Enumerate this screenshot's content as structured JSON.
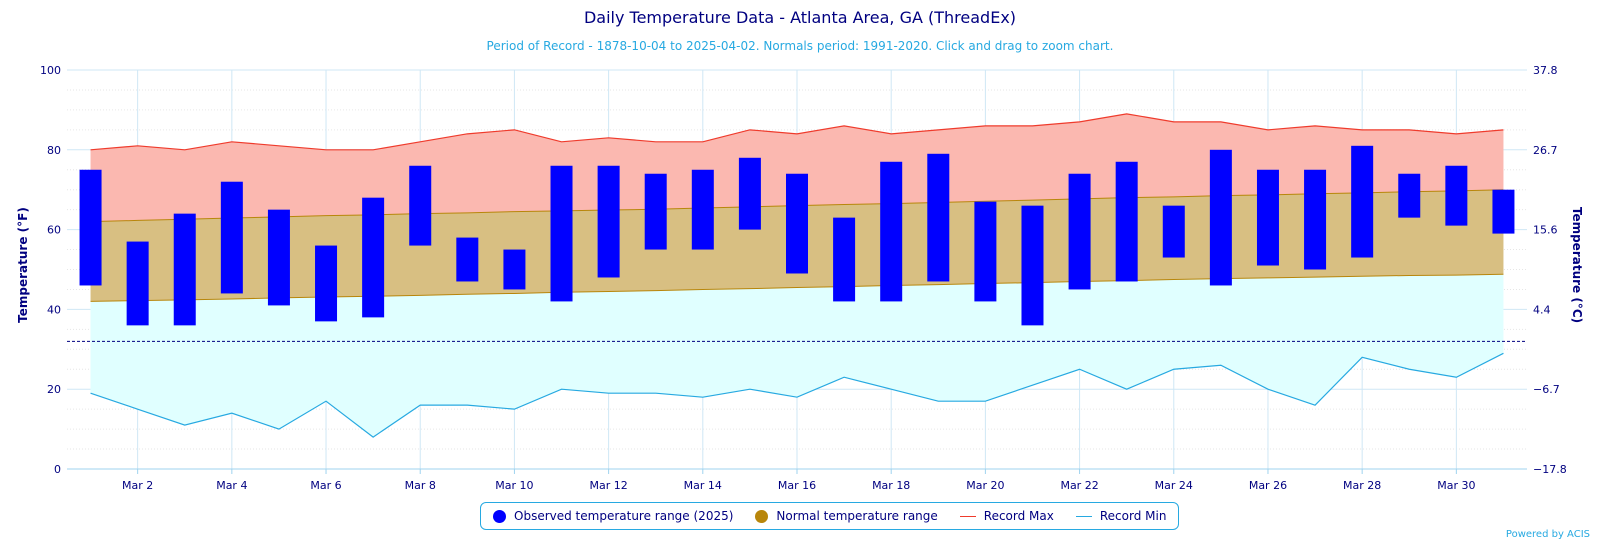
{
  "chart_data": {
    "type": "bar",
    "title": "Daily Temperature Data - Atlanta Area, GA (ThreadEx)",
    "subtitle": "Period of Record - 1878-10-04 to 2025-04-02. Normals period: 1991-2020. Click and drag to zoom chart.",
    "ylabel": "Temperature (°F)",
    "ylabel_right": "Temperature (°C)",
    "ylim": [
      0,
      100
    ],
    "yticks": [
      "0",
      "20",
      "40",
      "60",
      "80",
      "100"
    ],
    "yticks_right": [
      "−17.8",
      "−6.7",
      "4.4",
      "15.6",
      "26.7",
      "37.8"
    ],
    "freezing_line": 32,
    "grid": true,
    "legend_position": "bottom",
    "days": [
      1,
      2,
      3,
      4,
      5,
      6,
      7,
      8,
      9,
      10,
      11,
      12,
      13,
      14,
      15,
      16,
      17,
      18,
      19,
      20,
      21,
      22,
      23,
      24,
      25,
      26,
      27,
      28,
      29,
      30,
      31
    ],
    "x_tick_labels": [
      "Mar 2",
      "Mar 4",
      "Mar 6",
      "Mar 8",
      "Mar 10",
      "Mar 12",
      "Mar 14",
      "Mar 16",
      "Mar 18",
      "Mar 20",
      "Mar 22",
      "Mar 24",
      "Mar 26",
      "Mar 28",
      "Mar 30"
    ],
    "x_tick_days": [
      2,
      4,
      6,
      8,
      10,
      12,
      14,
      16,
      18,
      20,
      22,
      24,
      26,
      28,
      30
    ],
    "series": [
      {
        "name": "Observed temperature range (2025)",
        "color": "#0000ff",
        "low": [
          46,
          36,
          36,
          44,
          41,
          37,
          38,
          56,
          47,
          45,
          42,
          48,
          55,
          55,
          60,
          49,
          42,
          42,
          47,
          42,
          36,
          45,
          47,
          53,
          46,
          51,
          50,
          53,
          63,
          61,
          59
        ],
        "high": [
          75,
          57,
          64,
          72,
          65,
          56,
          68,
          76,
          58,
          55,
          76,
          76,
          74,
          75,
          78,
          74,
          63,
          77,
          79,
          67,
          66,
          74,
          77,
          66,
          80,
          75,
          75,
          81,
          74,
          76,
          70
        ]
      },
      {
        "name": "Normal temperature range",
        "color": "#b8860b",
        "low": [
          42.0,
          42.2,
          42.4,
          42.6,
          42.9,
          43.1,
          43.3,
          43.5,
          43.8,
          44.0,
          44.3,
          44.5,
          44.7,
          45.0,
          45.2,
          45.5,
          45.7,
          46.0,
          46.2,
          46.5,
          46.7,
          47.0,
          47.2,
          47.5,
          47.7,
          47.9,
          48.1,
          48.3,
          48.5,
          48.6,
          48.8
        ],
        "high": [
          62.0,
          62.3,
          62.6,
          62.9,
          63.2,
          63.5,
          63.7,
          64.0,
          64.2,
          64.5,
          64.7,
          64.9,
          65.1,
          65.4,
          65.7,
          66.0,
          66.3,
          66.5,
          66.8,
          67.1,
          67.4,
          67.7,
          68.0,
          68.2,
          68.5,
          68.7,
          69.0,
          69.2,
          69.5,
          69.7,
          70.0
        ]
      },
      {
        "name": "Record Max",
        "color": "#ef3b2c",
        "values": [
          80,
          81,
          80,
          82,
          81,
          80,
          80,
          82,
          84,
          85,
          82,
          83,
          82,
          82,
          85,
          84,
          86,
          84,
          85,
          86,
          86,
          87,
          89,
          87,
          87,
          85,
          86,
          85,
          85,
          84,
          85
        ]
      },
      {
        "name": "Record Min",
        "color": "#27a9e1",
        "values": [
          19,
          15,
          11,
          14,
          10,
          17,
          8,
          16,
          16,
          15,
          20,
          19,
          19,
          18,
          20,
          18,
          23,
          20,
          17,
          17,
          21,
          25,
          20,
          25,
          26,
          20,
          16,
          28,
          25,
          23,
          29
        ]
      }
    ]
  },
  "legend": {
    "observed": "Observed temperature range (2025)",
    "normal": "Normal temperature range",
    "record_max": "Record Max",
    "record_min": "Record Min"
  },
  "credits": "Powered by ACIS"
}
